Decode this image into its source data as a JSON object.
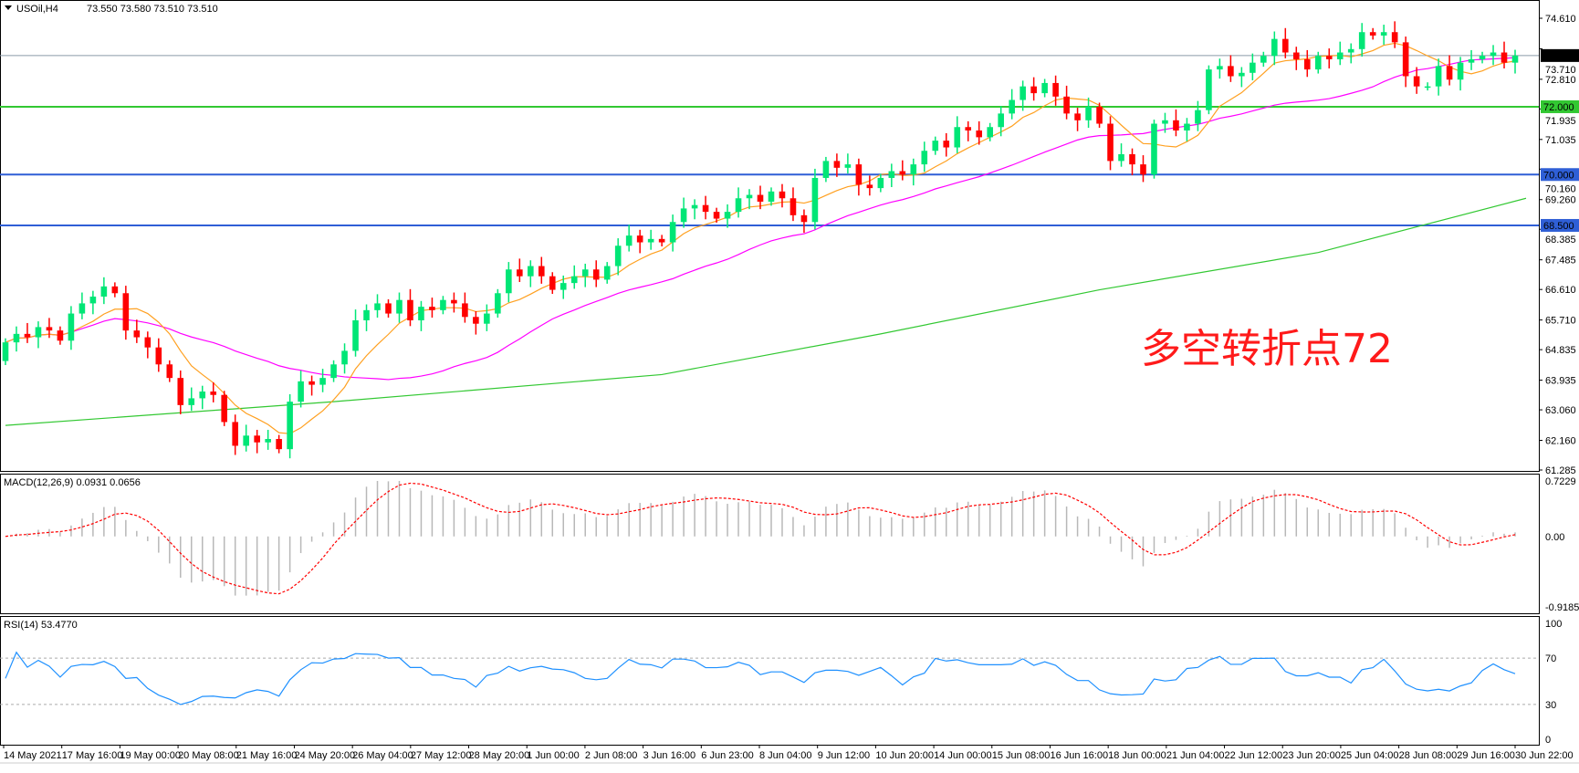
{
  "header": {
    "symbol": "USOil,H4",
    "ohlc": "73.550 73.580 73.510 73.510"
  },
  "annotation": "多空转折点72",
  "colors": {
    "bull": "#00e676",
    "bear": "#ff0000",
    "ma_fast": "#ffa020",
    "ma_mid": "#ff00ff",
    "ma_slow": "#32c832",
    "line_72": "#32c832",
    "line_blue": "#2f5fd6",
    "macd_signal": "#ff0000",
    "macd_hist": "#b8b8b8",
    "rsi": "#1e90ff"
  },
  "chart_data": [
    {
      "type": "candlestick",
      "title": "USOil,H4",
      "ylim": [
        61.285,
        74.61
      ],
      "open_first": 64.5,
      "close": [
        65.05,
        65.3,
        65.2,
        65.5,
        65.4,
        65.1,
        65.9,
        66.2,
        66.4,
        66.7,
        66.5,
        65.4,
        65.2,
        64.9,
        64.4,
        64.0,
        63.2,
        63.4,
        63.6,
        63.5,
        62.7,
        62.0,
        62.3,
        62.1,
        62.2,
        61.9,
        63.3,
        63.9,
        63.8,
        64.0,
        64.4,
        64.8,
        65.7,
        66.0,
        66.2,
        65.9,
        66.3,
        65.7,
        66.1,
        66.0,
        66.3,
        66.2,
        65.8,
        65.6,
        65.9,
        66.5,
        67.2,
        67.0,
        67.3,
        67.0,
        66.6,
        66.8,
        67.0,
        67.2,
        66.9,
        67.3,
        67.9,
        68.2,
        68.0,
        68.1,
        68.0,
        68.6,
        69.0,
        69.1,
        68.9,
        68.7,
        68.9,
        69.3,
        69.4,
        69.2,
        69.5,
        69.3,
        68.8,
        68.6,
        69.9,
        70.4,
        70.2,
        70.3,
        69.7,
        69.6,
        69.9,
        70.1,
        70.0,
        70.3,
        70.7,
        71.0,
        70.8,
        71.4,
        71.3,
        71.1,
        71.4,
        71.8,
        72.2,
        72.6,
        72.4,
        72.7,
        72.3,
        71.8,
        71.6,
        72.0,
        71.5,
        70.4,
        70.6,
        70.3,
        70.0,
        71.5,
        71.6,
        71.3,
        71.5,
        71.9,
        73.1,
        73.2,
        72.9,
        73.0,
        73.3,
        73.5,
        74.0,
        73.6,
        73.4,
        73.1,
        73.5,
        73.4,
        73.6,
        73.7,
        74.2,
        74.1,
        74.2,
        73.9,
        72.9,
        72.6,
        72.6,
        73.2,
        72.8,
        73.3,
        73.4,
        73.5,
        73.6,
        73.3,
        73.51
      ],
      "ma_slow": [
        [
          0,
          62.6
        ],
        [
          30,
          63.3
        ],
        [
          60,
          64.1
        ],
        [
          80,
          65.3
        ],
        [
          100,
          66.6
        ],
        [
          120,
          67.7
        ],
        [
          139,
          69.3
        ]
      ],
      "price_ticks": [
        "74.610",
        "73.710",
        "72.810",
        "71.935",
        "71.035",
        "70.160",
        "69.260",
        "68.385",
        "67.485",
        "66.610",
        "65.710",
        "64.835",
        "63.935",
        "63.060",
        "62.160",
        "61.285"
      ],
      "levels": [
        {
          "value": 72.0,
          "label": "72.000",
          "color": "#32c832"
        },
        {
          "value": 70.0,
          "label": "70.000",
          "color": "#2f5fd6"
        },
        {
          "value": 68.5,
          "label": "68.500",
          "color": "#2f5fd6"
        }
      ],
      "current_price": {
        "value": 73.51,
        "label": "73.510"
      },
      "x_ticks": [
        "14 May 2021",
        "17 May 16:00",
        "19 May 00:00",
        "20 May 08:00",
        "21 May 16:00",
        "24 May 20:00",
        "26 May 04:00",
        "27 May 12:00",
        "28 May 20:00",
        "1 Jun 00:00",
        "2 Jun 08:00",
        "3 Jun 16:00",
        "6 Jun 23:00",
        "8 Jun 04:00",
        "9 Jun 12:00",
        "10 Jun 20:00",
        "14 Jun 00:00",
        "15 Jun 08:00",
        "16 Jun 16:00",
        "18 Jun 00:00",
        "21 Jun 04:00",
        "22 Jun 12:00",
        "23 Jun 20:00",
        "25 Jun 04:00",
        "28 Jun 08:00",
        "29 Jun 16:00",
        "30 Jun 22:00"
      ]
    },
    {
      "type": "bar",
      "title": "MACD(12,26,9) 0.0931 0.0656",
      "ylim": [
        -0.9185,
        0.7229
      ],
      "ticks": [
        "0.7229",
        "0.00",
        "-0.9185"
      ]
    },
    {
      "type": "line",
      "title": "RSI(14) 53.4770",
      "ylim": [
        0,
        100
      ],
      "ticks": [
        "100",
        "70",
        "30",
        "0"
      ],
      "levels": [
        70,
        30
      ]
    }
  ]
}
